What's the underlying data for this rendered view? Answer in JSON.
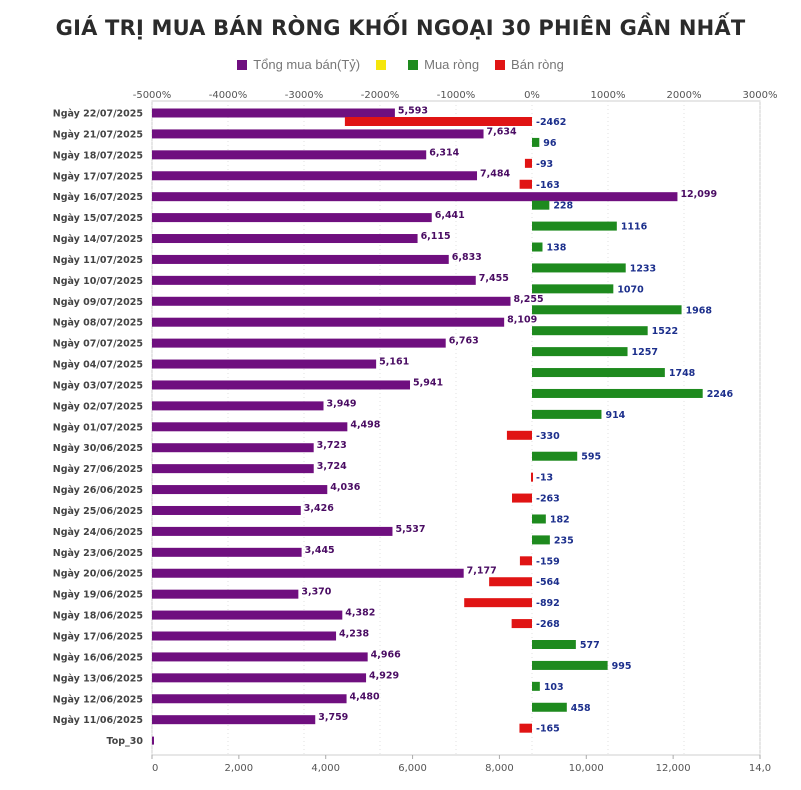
{
  "title": "GIÁ TRỊ MUA BÁN RÒNG KHỐI NGOẠI 30 PHIÊN GẦN NHẤT",
  "legend": [
    {
      "label": "Tổng mua bán(Tỷ)",
      "color": "#6f0f7f"
    },
    {
      "label": "",
      "color": "#f5e60b"
    },
    {
      "label": "Mua ròng",
      "color": "#1e8a1e"
    },
    {
      "label": "Bán ròng",
      "color": "#e01414"
    }
  ],
  "chart_data": {
    "type": "bar",
    "orientation": "horizontal",
    "title": "GIÁ TRỊ MUA BÁN RÒNG KHỐI NGOẠI 30 PHIÊN GẦN NHẤT",
    "categories": [
      "Ngày 22/07/2025",
      "Ngày 21/07/2025",
      "Ngày 18/07/2025",
      "Ngày 17/07/2025",
      "Ngày 16/07/2025",
      "Ngày 15/07/2025",
      "Ngày 14/07/2025",
      "Ngày 11/07/2025",
      "Ngày 10/07/2025",
      "Ngày 09/07/2025",
      "Ngày 08/07/2025",
      "Ngày 07/07/2025",
      "Ngày 04/07/2025",
      "Ngày 03/07/2025",
      "Ngày 02/07/2025",
      "Ngày 01/07/2025",
      "Ngày 30/06/2025",
      "Ngày 27/06/2025",
      "Ngày 26/06/2025",
      "Ngày 25/06/2025",
      "Ngày 24/06/2025",
      "Ngày 23/06/2025",
      "Ngày 20/06/2025",
      "Ngày 19/06/2025",
      "Ngày 18/06/2025",
      "Ngày 17/06/2025",
      "Ngày 16/06/2025",
      "Ngày 13/06/2025",
      "Ngày 12/06/2025",
      "Ngày 11/06/2025",
      "Top_30"
    ],
    "series": [
      {
        "name": "Tổng mua bán(Tỷ)",
        "color": "#6f0f7f",
        "values": [
          5593,
          7634,
          6314,
          7484,
          12099,
          6441,
          6115,
          6833,
          7455,
          8255,
          8109,
          6763,
          5161,
          5941,
          3949,
          4498,
          3723,
          3724,
          4036,
          3426,
          5537,
          3445,
          7177,
          3370,
          4382,
          4238,
          4966,
          4929,
          4480,
          3759,
          0
        ],
        "labels": [
          "5,593",
          "7,634",
          "6,314",
          "7,484",
          "12,099",
          "6,441",
          "6,115",
          "6,833",
          "7,455",
          "8,255",
          "8,109",
          "6,763",
          "5,161",
          "5,941",
          "3,949",
          "4,498",
          "3,723",
          "3,724",
          "4,036",
          "3,426",
          "5,537",
          "3,445",
          "7,177",
          "3,370",
          "4,382",
          "4,238",
          "4,966",
          "4,929",
          "4,480",
          "3,759",
          ""
        ]
      },
      {
        "name": "Mua ròng / Bán ròng",
        "positive_color": "#1e8a1e",
        "negative_color": "#e01414",
        "values": [
          -2462,
          96,
          -93,
          -163,
          228,
          1116,
          138,
          1233,
          1070,
          1968,
          1522,
          1257,
          1748,
          2246,
          914,
          -330,
          595,
          -13,
          -263,
          182,
          235,
          -159,
          -564,
          -892,
          -268,
          577,
          995,
          103,
          458,
          -165,
          null
        ]
      }
    ],
    "bottom_axis": {
      "ticks": [
        "0",
        "2,000",
        "4,000",
        "6,000",
        "8,000",
        "10,000",
        "12,000",
        "14,0"
      ],
      "range": [
        0,
        14000
      ]
    },
    "top_axis": {
      "ticks": [
        "-5000%",
        "-4000%",
        "-3000%",
        "-2000%",
        "-1000%",
        "0%",
        "1000%",
        "2000%",
        "3000%"
      ],
      "range": [
        -5000,
        3000
      ]
    }
  }
}
